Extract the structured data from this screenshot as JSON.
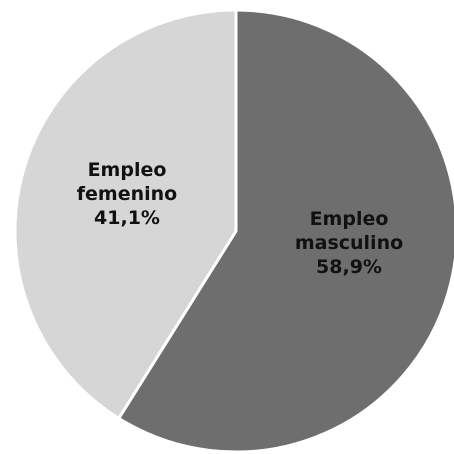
{
  "chart_data": {
    "type": "pie",
    "slices": [
      {
        "label_lines": [
          "Empleo",
          "masculino"
        ],
        "value": 58.9,
        "value_label": "58,9%",
        "color": "#6e6e6e"
      },
      {
        "label_lines": [
          "Empleo",
          "femenino"
        ],
        "value": 41.1,
        "value_label": "41,1%",
        "color": "#d6d6d6"
      }
    ],
    "start": "12 o'clock",
    "direction": "clockwise",
    "legend": "none"
  }
}
